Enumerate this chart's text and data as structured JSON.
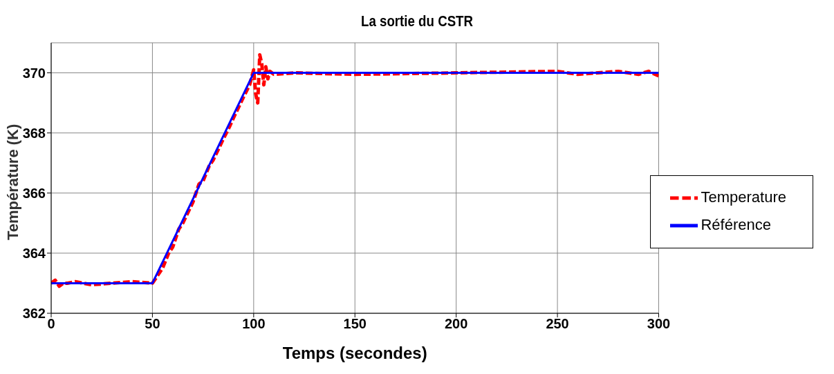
{
  "chart_data": {
    "type": "line",
    "title": "La sortie du CSTR",
    "xlabel": "Temps (secondes)",
    "ylabel": "Température (K)",
    "xlim": [
      0,
      300
    ],
    "xticks": [
      0,
      50,
      100,
      150,
      200,
      250,
      300
    ],
    "ylim": [
      362,
      371
    ],
    "yticks": [
      362,
      364,
      366,
      368,
      370
    ],
    "grid": true,
    "legend": "right",
    "marker": "none",
    "series": [
      {
        "name": "Temperature",
        "color": "#ff0000",
        "line_style": "dashed",
        "x": [
          0,
          2,
          4,
          6,
          8,
          12,
          20,
          30,
          40,
          50,
          55,
          58,
          60,
          63,
          65,
          70,
          73,
          75,
          78,
          80,
          85,
          88,
          90,
          95,
          98,
          100,
          101,
          102,
          103,
          104,
          105,
          106,
          107,
          108,
          110,
          120,
          150,
          200,
          250,
          260,
          280,
          290,
          295,
          300
        ],
        "values": [
          363,
          363.1,
          362.9,
          363,
          363,
          363.05,
          362.95,
          363,
          363.05,
          363,
          363.5,
          364,
          364.2,
          364.8,
          365,
          365.7,
          366.3,
          366.4,
          366.9,
          367.1,
          367.8,
          368.2,
          368.5,
          369.2,
          369.6,
          370.1,
          369.3,
          369,
          370.6,
          370.3,
          369.6,
          370.2,
          369.8,
          370.05,
          369.95,
          370,
          369.95,
          370,
          370.05,
          369.95,
          370.05,
          369.95,
          370.05,
          369.9
        ]
      },
      {
        "name": "Référence",
        "color": "#0000ff",
        "line_style": "solid",
        "x": [
          0,
          50,
          100,
          300
        ],
        "values": [
          363,
          363,
          370,
          370
        ]
      }
    ]
  }
}
